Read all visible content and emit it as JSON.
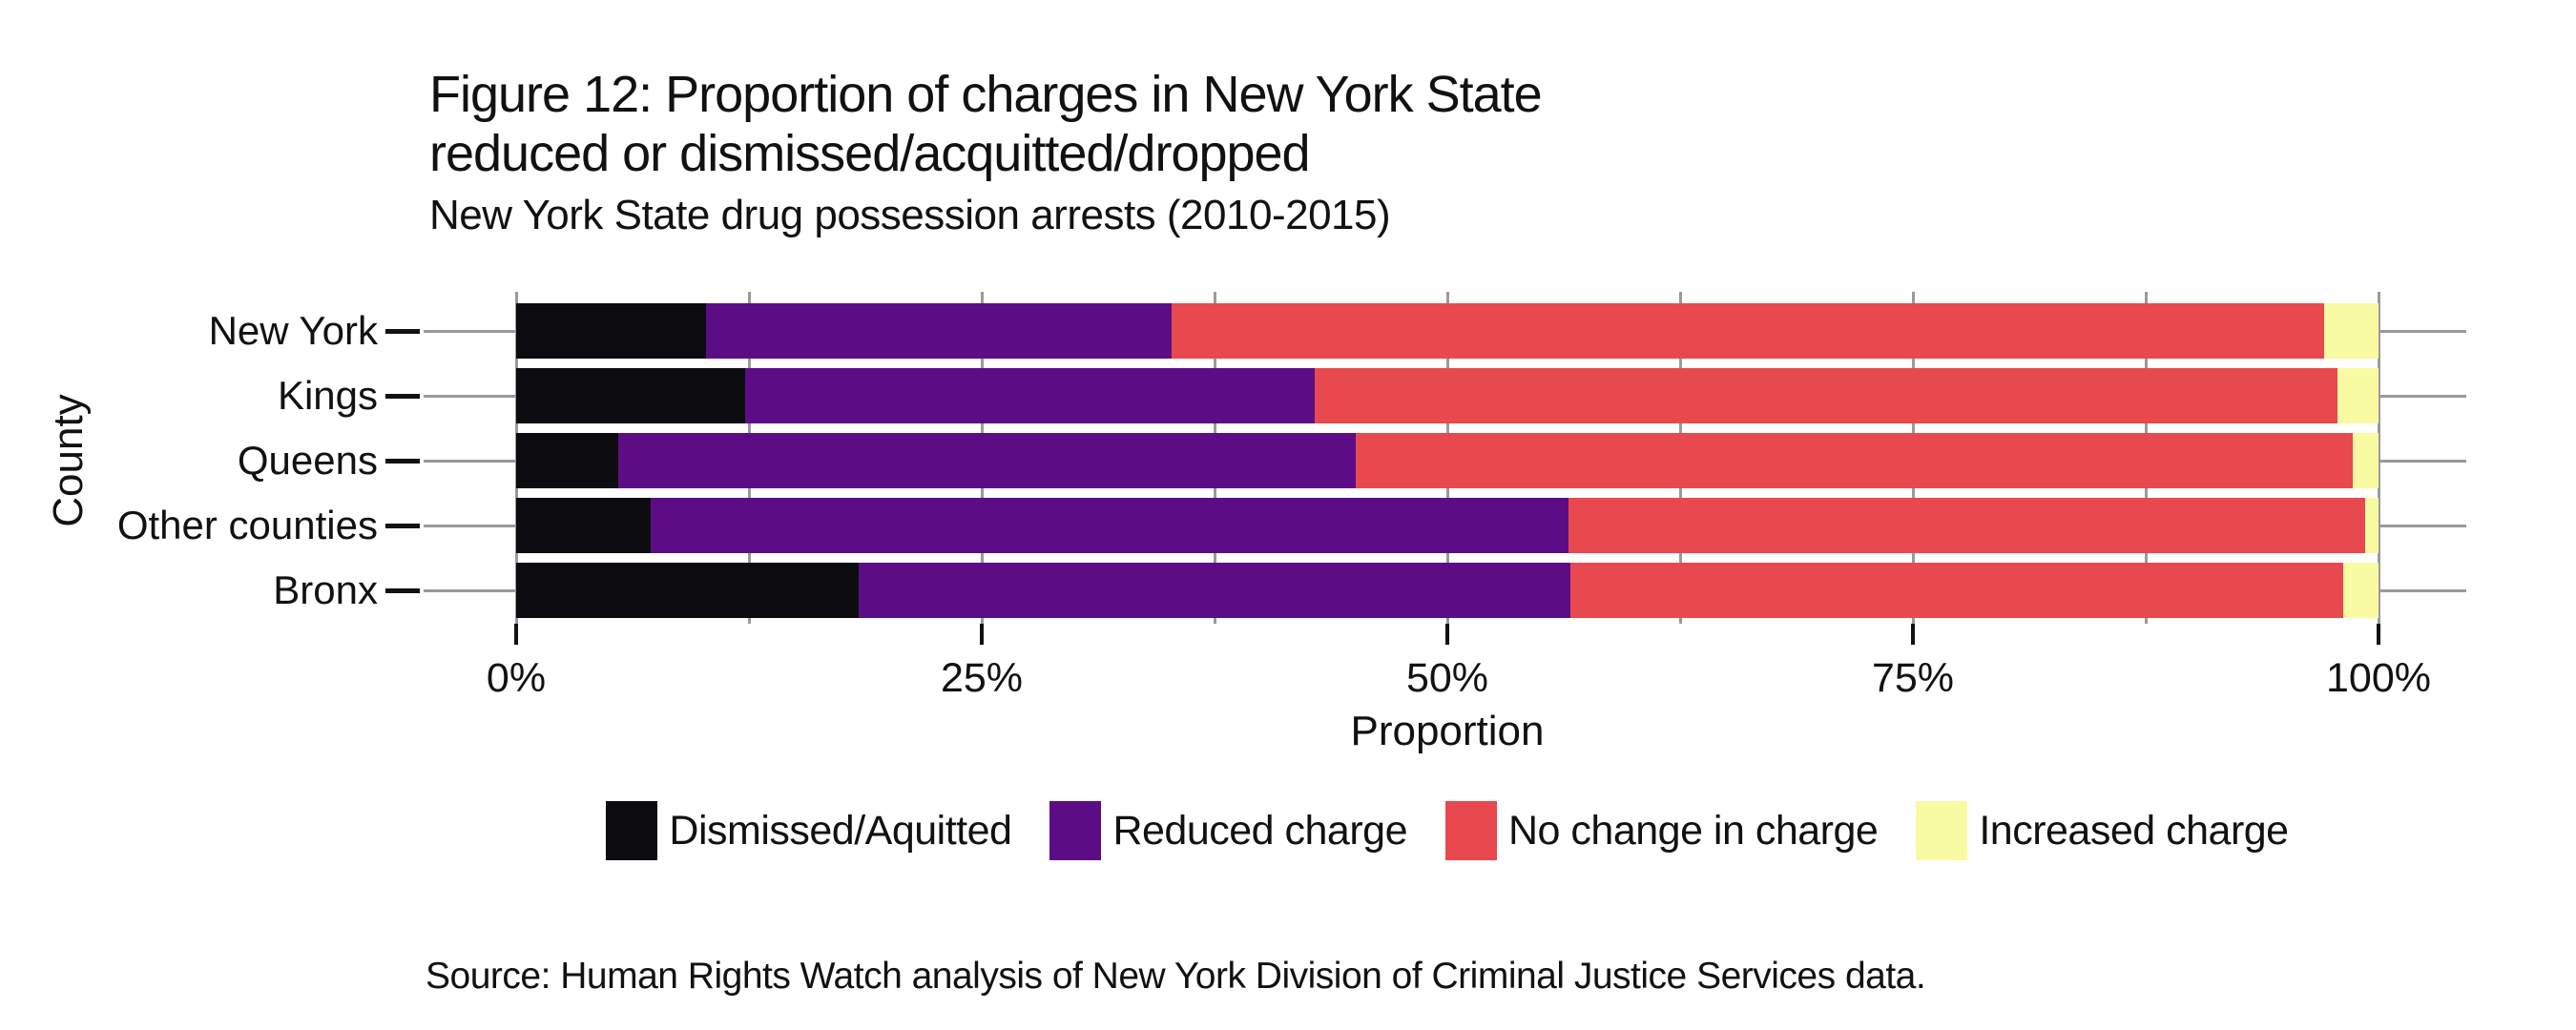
{
  "figure": {
    "title_line1": "Figure 12: Proportion of charges in New York State",
    "title_line2": "reduced or dismissed/acquitted/dropped",
    "subtitle": "New York State drug possession arrests (2010-2015)",
    "source": "Source: Human Rights Watch analysis of New York Division of Criminal Justice Services data."
  },
  "colors": {
    "gridline": "#9a9a9a",
    "tick": "#111111",
    "text": "#111111",
    "background": "#ffffff"
  },
  "chart_data": {
    "type": "bar",
    "orientation": "horizontal",
    "stacked": true,
    "title": "Figure 12: Proportion of charges in New York State reduced or dismissed/acquitted/dropped",
    "subtitle": "New York State drug possession arrests (2010-2015)",
    "xlabel": "Proportion",
    "ylabel": "County",
    "xlim": [
      0,
      100
    ],
    "x_tick_labels": [
      "0%",
      "25%",
      "50%",
      "75%",
      "100%"
    ],
    "x_tick_values": [
      0,
      25,
      50,
      75,
      100
    ],
    "x_minor_grid_step": 12.5,
    "grid": true,
    "legend_position": "bottom",
    "categories": [
      "New York",
      "Kings",
      "Queens",
      "Other counties",
      "Bronx"
    ],
    "series": [
      {
        "name": "Dismissed/Aquitted",
        "color": "#0b0b10",
        "values": [
          10.2,
          12.3,
          5.5,
          7.2,
          18.4
        ]
      },
      {
        "name": "Reduced charge",
        "color": "#5c0d86",
        "values": [
          25.0,
          30.6,
          39.6,
          49.3,
          38.2
        ]
      },
      {
        "name": "No change in charge",
        "color": "#e8494e",
        "values": [
          61.9,
          54.9,
          53.5,
          42.8,
          41.5
        ]
      },
      {
        "name": "Increased charge",
        "color": "#f9fba3",
        "values": [
          2.9,
          2.2,
          1.4,
          0.7,
          1.9
        ]
      }
    ]
  }
}
